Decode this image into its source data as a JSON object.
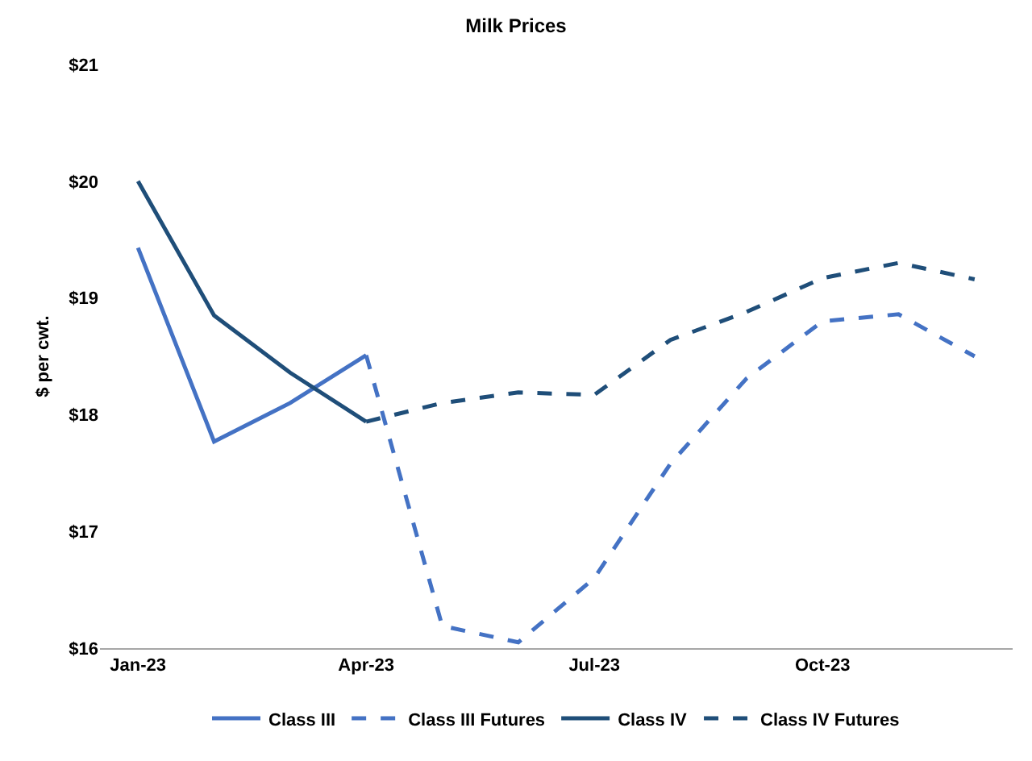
{
  "chart_data": {
    "type": "line",
    "title": "Milk Prices",
    "ylabel": "$ per cwt.",
    "categories": [
      "Jan-23",
      null,
      null,
      "Apr-23",
      null,
      null,
      "Jul-23",
      null,
      null,
      "Oct-23",
      null,
      null
    ],
    "series": [
      {
        "name": "Class III",
        "color": "#4472c4",
        "line_style": "solid",
        "values": [
          19.43,
          17.77,
          18.1,
          18.51,
          null,
          null,
          null,
          null,
          null,
          null,
          null,
          null
        ]
      },
      {
        "name": "Class III Futures",
        "color": "#4472c4",
        "line_style": "dashed",
        "values": [
          null,
          null,
          null,
          18.51,
          16.19,
          16.05,
          16.6,
          17.58,
          18.31,
          18.8,
          18.86,
          18.5
        ]
      },
      {
        "name": "Class IV",
        "color": "#1f4e79",
        "line_style": "solid",
        "values": [
          20.0,
          18.85,
          18.36,
          17.94,
          null,
          null,
          null,
          null,
          null,
          null,
          null,
          null
        ]
      },
      {
        "name": "Class IV Futures",
        "color": "#1f4e79",
        "line_style": "dashed",
        "values": [
          null,
          null,
          null,
          17.94,
          18.1,
          18.19,
          18.17,
          18.64,
          18.88,
          19.17,
          19.3,
          19.16
        ]
      }
    ],
    "ylim": [
      16,
      21
    ],
    "yticks": [
      {
        "value": 16,
        "label": "$16"
      },
      {
        "value": 17,
        "label": "$17"
      },
      {
        "value": 18,
        "label": "$18"
      },
      {
        "value": 19,
        "label": "$19"
      },
      {
        "value": 20,
        "label": "$20"
      },
      {
        "value": 21,
        "label": "$21"
      }
    ],
    "legend": "bottom",
    "marker": "none"
  }
}
